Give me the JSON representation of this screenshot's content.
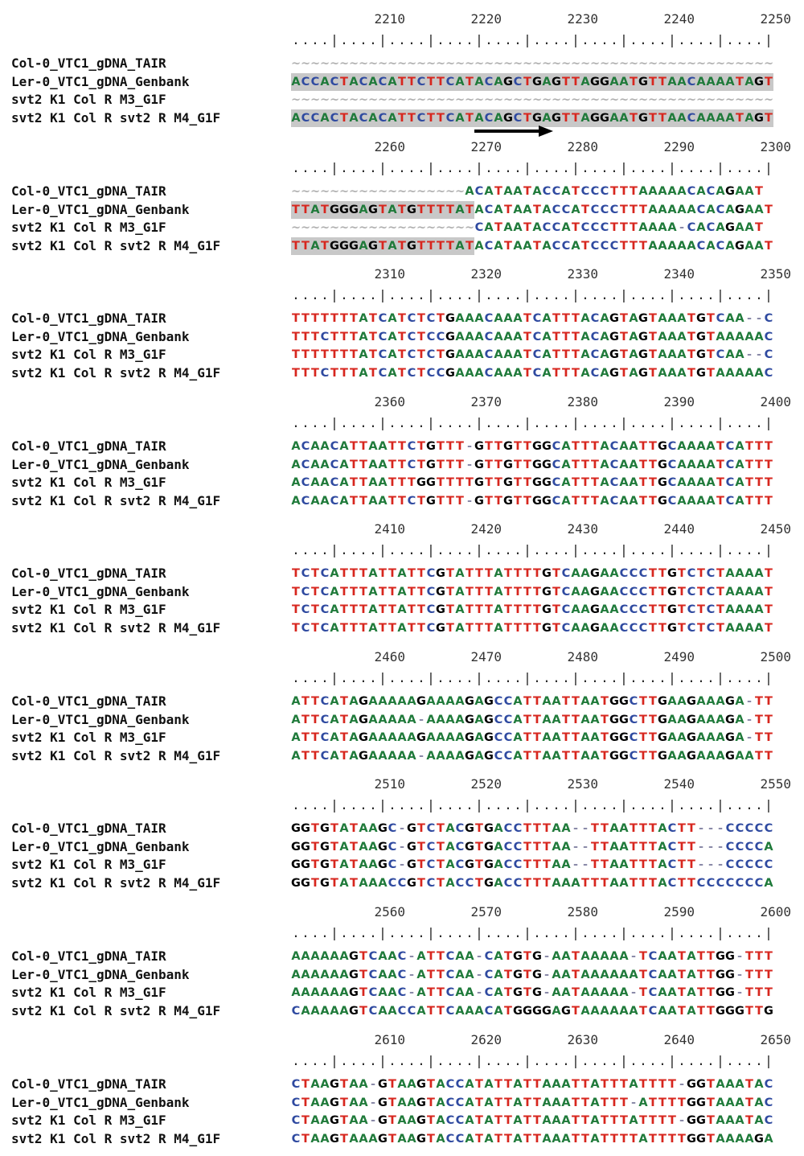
{
  "sample_labels": [
    "Col-0_VTC1_gDNA_TAIR",
    "Ler-0_VTC1_gDNA_Genbank",
    "svt2 K1 Col R M3_G1F",
    "svt2 K1 Col R svt2 R M4_G1F"
  ],
  "ruler_pattern": "....|....|....|....|....|....|....|....|....|....|",
  "colors": {
    "A": "#1f7a3a",
    "T": "#d7261e",
    "C": "#2f4aa0",
    "G": "#000000",
    "gap": "#8a8aa8",
    "highlight": "#c8c8c8"
  },
  "blocks": [
    {
      "ruler": [
        "2210",
        "2220",
        "2230",
        "2240",
        "2250"
      ],
      "sequences": [
        "~~~~~~~~~~~~~~~~~~~~~~~~~~~~~~~~~~~~~~~~~~~~~~~~~~",
        "ACCACTACACATTCTTCATACAGCTGAGTTAGGAATGTTAACAAAATAGT",
        "~~~~~~~~~~~~~~~~~~~~~~~~~~~~~~~~~~~~~~~~~~~~~~~~~~",
        "ACCACTACACATTCTTCATACAGCTGAGTTAGGAATGTTAACAAAATAGT"
      ],
      "highlight_cols": [
        0,
        50
      ],
      "highlight_rows": [
        1,
        3
      ],
      "arrow": "primer-arrow-right"
    },
    {
      "ruler": [
        "2260",
        "2270",
        "2280",
        "2290",
        "2300"
      ],
      "sequences": [
        "~~~~~~~~~~~~~~~~~~ACATAATACCATCCCTTTAAAAACACAGAAT",
        "TTATGGGAGTATGTTTTATACATAATACCATCCCTTTAAAAACACAGAAT",
        "~~~~~~~~~~~~~~~~~~~CATAATACCATCCCTTTAAAA-CACAGAAT",
        "TTATGGGAGTATGTTTTATACATAATACCATCCCTTTAAAAACACAGAAT"
      ],
      "highlight_cols": [
        0,
        19
      ],
      "highlight_rows": [
        1,
        3
      ]
    },
    {
      "ruler": [
        "2310",
        "2320",
        "2330",
        "2340",
        "2350"
      ],
      "sequences": [
        "TTTTTTTATCATCTCTGAAACAAATCATTTACAGTAGTAAATGTCAA--C",
        "TTTCTTTATCATCTCCGAAACAAATCATTTACAGTAGTAAATGTAAAAAC",
        "TTTTTTTATCATCTCTGAAACAAATCATTTACAGTAGTAAATGTCAA--C",
        "TTTCTTTATCATCTCCGAAACAAATCATTTACAGTAGTAAATGTAAAAAC"
      ]
    },
    {
      "ruler": [
        "2360",
        "2370",
        "2380",
        "2390",
        "2400"
      ],
      "sequences": [
        "ACAACATTAATTCTGTTT-GTTGTTGGCATTTACAATTGCAAAATCATTT",
        "ACAACATTAATTCTGTTT-GTTGTTGGCATTTACAATTGCAAAATCATTT",
        "ACAACATTAATTTGGTTTTGTTGTTGGCATTTACAATTGCAAAATCATTT",
        "ACAACATTAATTCTGTTT-GTTGTTGGCATTTACAATTGCAAAATCATTT"
      ]
    },
    {
      "ruler": [
        "2410",
        "2420",
        "2430",
        "2440",
        "2450"
      ],
      "sequences": [
        "TCTCATTTATTATTCGTATTTATTTTGTCAAGAACCCTTGTCTCTAAAAT",
        "TCTCATTTATTATTCGTATTTATTTTGTCAAGAACCCTTGTCTCTAAAAT",
        "TCTCATTTATTATTCGTATTTATTTTGTCAAGAACCCTTGTCTCTAAAAT",
        "TCTCATTTATTATTCGTATTTATTTTGTCAAGAACCCTTGTCTCTAAAAT"
      ]
    },
    {
      "ruler": [
        "2460",
        "2470",
        "2480",
        "2490",
        "2500"
      ],
      "sequences": [
        "ATTCATAGAAAAAGAAAAGAGCCATTAATTAATGGCTTGAAGAAAGA-TT",
        "ATTCATAGAAAAA-AAAAGAGCCATTAATTAATGGCTTGAAGAAAGA-TT",
        "ATTCATAGAAAAAGAAAAGAGCCATTAATTAATGGCTTGAAGAAAGA-TT",
        "ATTCATAGAAAAA-AAAAGAGCCATTAATTAATGGCTTGAAGAAAGAATT"
      ]
    },
    {
      "ruler": [
        "2510",
        "2520",
        "2530",
        "2540",
        "2550"
      ],
      "sequences": [
        "GGTGTATAAGC-GTCTACGTGACCTTTAA--TTAATTTACTT---CCCCC",
        "GGTGTATAAGC-GTCTACGTGACCTTTAA--TTAATTTACTT---CCCCA",
        "GGTGTATAAGC-GTCTACGTGACCTTTAA--TTAATTTACTT---CCCCC",
        "GGTGTATAAACCGTCTACCTGACCTTTAAATTTAATTTACTTCCCCCCCA"
      ]
    },
    {
      "ruler": [
        "2560",
        "2570",
        "2580",
        "2590",
        "2600"
      ],
      "sequences": [
        "AAAAAAGTCAAC-ATTCAA-CATGTG-AATAAAAA-TCAATATTGG-TTT",
        "AAAAAAGTCAAC-ATTCAA-CATGTG-AATAAAAAATCAATATTGG-TTT",
        "AAAAAAGTCAAC-ATTCAA-CATGTG-AATAAAAA-TCAATATTGG-TTT",
        "CAAAAAGTCAACCATTCAAACATGGGGAGTAAAAAATCAATATTGGGTTG"
      ]
    },
    {
      "ruler": [
        "2610",
        "2620",
        "2630",
        "2640",
        "2650"
      ],
      "sequences": [
        "CTAAGTAA-GTAAGTACCATATTATTAAATTATTTATTTT-GGTAAATAC",
        "CTAAGTAA-GTAAGTACCATATTATTAAATTATTT-ATTTTGGTAAATAC",
        "CTAAGTAA-GTAAGTACCATATTATTAAATTATTTATTTT-GGTAAATAC",
        "CTAAGTAAAGTAAGTACCATATTATTAAATTATTTTATTTTGGTAAAAGA"
      ]
    }
  ]
}
